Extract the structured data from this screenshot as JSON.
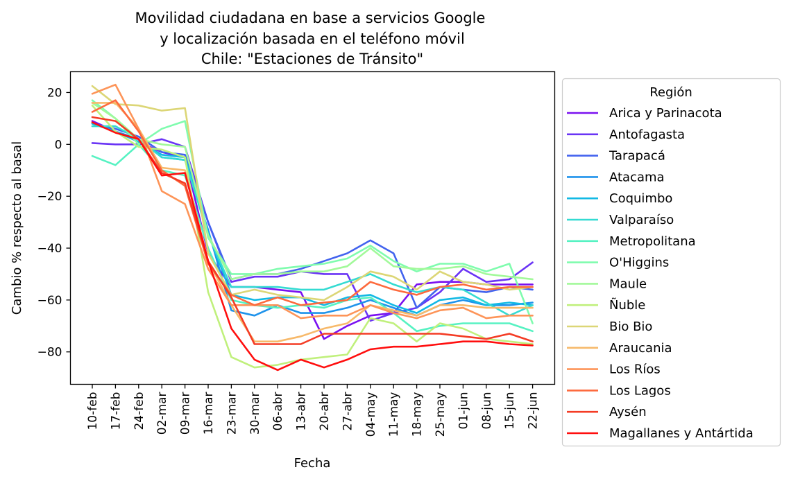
{
  "chart_data": {
    "type": "line",
    "title": [
      "Movilidad ciudadana en base a servicios Google",
      "y localización basada en el teléfono móvil",
      "Chile: \"Estaciones de Tránsito\""
    ],
    "xlabel": "Fecha",
    "ylabel": "Cambio % respecto al basal",
    "categories": [
      "10-feb",
      "17-feb",
      "24-feb",
      "02-mar",
      "09-mar",
      "16-mar",
      "23-mar",
      "30-mar",
      "06-abr",
      "13-abr",
      "20-abr",
      "27-abr",
      "04-may",
      "11-may",
      "18-may",
      "25-may",
      "01-jun",
      "08-jun",
      "15-jun",
      "22-jun"
    ],
    "ylim": [
      -92.5,
      28
    ],
    "yticks": [
      20,
      0,
      -20,
      -40,
      -60,
      -80
    ],
    "ytick_labels": [
      "20",
      "0",
      "−20",
      "−40",
      "−60",
      "−80"
    ],
    "grid": false,
    "legend": {
      "title": "Región",
      "placement": "outside-right"
    },
    "series": [
      {
        "name": "Arica y Parinacota",
        "color": "#7a10f0",
        "values": [
          9,
          5,
          1,
          -3,
          -5,
          -42,
          -55,
          -55,
          -56,
          -57,
          -75,
          -70,
          -66,
          -65,
          -54,
          -53,
          -53,
          -54,
          -54,
          -54
        ]
      },
      {
        "name": "Antofagasta",
        "color": "#6a34f5",
        "values": [
          0.5,
          0,
          0,
          2,
          -1,
          -30,
          -53,
          -51,
          -51,
          -49,
          -50,
          -50,
          -68,
          -65,
          -63,
          -57,
          -48,
          -53,
          -52,
          -45.5
        ]
      },
      {
        "name": "Tarapacá",
        "color": "#4263ee",
        "values": [
          8,
          6,
          3,
          -3,
          -4,
          -30,
          -52,
          -50,
          -50,
          -48,
          -45,
          -42,
          -37,
          -42,
          -63,
          -55,
          -56,
          -57,
          -55,
          -56
        ]
      },
      {
        "name": "Atacama",
        "color": "#1f93eb",
        "values": [
          8,
          5,
          2,
          -5,
          -6,
          -33,
          -64,
          -66,
          -62,
          -65,
          -65,
          -63,
          -60,
          -63,
          -66,
          -62,
          -60,
          -62,
          -62,
          -61
        ]
      },
      {
        "name": "Coquimbo",
        "color": "#12b9e4",
        "values": [
          8,
          5,
          1,
          -4,
          -5,
          -34,
          -58,
          -60,
          -59,
          -59,
          -62,
          -59,
          -58,
          -62,
          -65,
          -60,
          -59,
          -62,
          -61,
          -62
        ]
      },
      {
        "name": "Valparaíso",
        "color": "#34dbd2",
        "values": [
          7,
          7,
          2,
          -5,
          -6,
          -35,
          -55,
          -55,
          -55,
          -56,
          -56,
          -53,
          -50,
          -54,
          -57,
          -55,
          -56,
          -61,
          -66,
          -62
        ]
      },
      {
        "name": "Metropolitana",
        "color": "#56f2c2",
        "values": [
          -4.5,
          -8,
          0,
          -10,
          -12,
          -40,
          -60,
          -62,
          -63,
          -62,
          -63,
          -60,
          -59,
          -65,
          -72,
          -70,
          -69,
          -69,
          -69,
          -72
        ]
      },
      {
        "name": "O'Higgins",
        "color": "#7ffcae",
        "values": [
          17,
          10,
          0,
          6,
          9,
          -36,
          -50,
          -50,
          -48,
          -47,
          -46,
          -44,
          -39,
          -45,
          -49,
          -46,
          -46,
          -49,
          -46,
          -69
        ]
      },
      {
        "name": "Maule",
        "color": "#a2f99a",
        "values": [
          16,
          10,
          2,
          0,
          -1,
          -35,
          -52,
          -50,
          -50,
          -49,
          -49,
          -47,
          -40,
          -47,
          -48,
          -48,
          -47,
          -50,
          -51,
          -52
        ]
      },
      {
        "name": "Ñuble",
        "color": "#c0f07c",
        "values": [
          15,
          5,
          -1,
          -2,
          -5,
          -57,
          -82,
          -86,
          -85,
          -83,
          -82,
          -81,
          -67,
          -69,
          -76,
          -69,
          -71,
          -75,
          -76,
          -77
        ]
      },
      {
        "name": "Bio Bio",
        "color": "#dcd676",
        "values": [
          22.5,
          15.5,
          15,
          13,
          14,
          -42,
          -58,
          -56,
          -58,
          -59,
          -60,
          -55,
          -49,
          -51,
          -56,
          -49,
          -53,
          -54,
          -56,
          -55
        ]
      },
      {
        "name": "Araucania",
        "color": "#f7b96a",
        "values": [
          16,
          16,
          6,
          -9,
          -10,
          -45,
          -62,
          -76,
          -76,
          -74,
          -71,
          -69,
          -62,
          -64,
          -66,
          -62,
          -62,
          -63,
          -63,
          -63
        ]
      },
      {
        "name": "Los Ríos",
        "color": "#fd9458",
        "values": [
          19.5,
          23,
          6,
          -18,
          -23,
          -48,
          -62,
          -62,
          -62,
          -67,
          -66,
          -66,
          -62,
          -65,
          -67,
          -64,
          -63,
          -67,
          -66,
          -66
        ]
      },
      {
        "name": "Los Lagos",
        "color": "#fd6a3d",
        "values": [
          12.5,
          17,
          5,
          -10,
          -16,
          -46,
          -58,
          -62,
          -59,
          -62,
          -61,
          -60,
          -53,
          -56,
          -58,
          -55,
          -54,
          -56,
          -55,
          -55
        ]
      },
      {
        "name": "Aysén",
        "color": "#f43c25",
        "values": [
          10.5,
          9,
          2,
          -11,
          -15,
          -45,
          -59,
          -77,
          -77,
          -77,
          -73,
          -73,
          -73,
          -73,
          -73,
          -73,
          -74,
          -75,
          -73,
          -76
        ]
      },
      {
        "name": "Magallanes y Antártida",
        "color": "#ff0e0e",
        "values": [
          8.5,
          4.5,
          2,
          -12,
          -11,
          -45,
          -71,
          -83,
          -87,
          -83,
          -86,
          -83,
          -79,
          -78,
          -78,
          -77,
          -76,
          -76,
          -77,
          -77.5
        ]
      }
    ]
  }
}
